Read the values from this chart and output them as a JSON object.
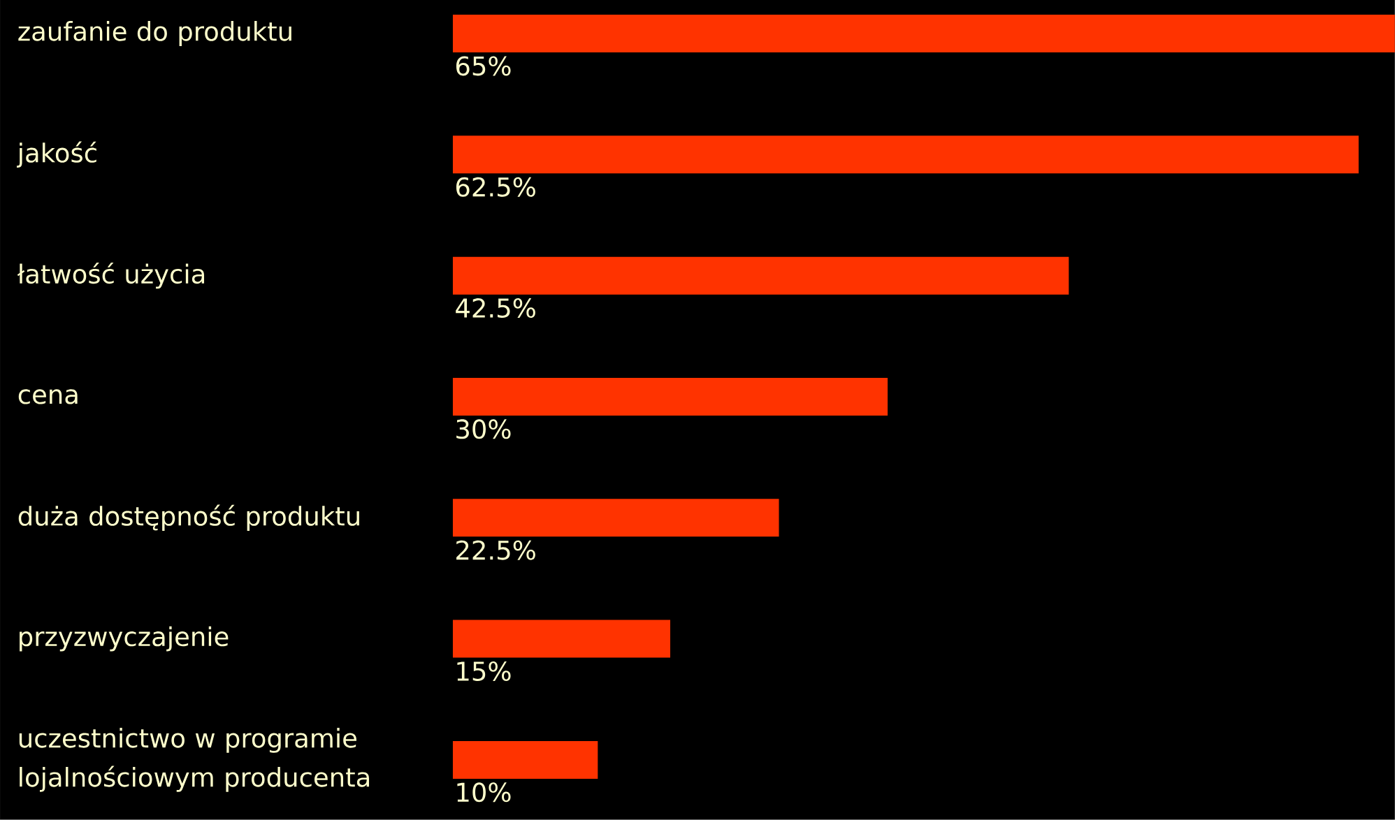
{
  "chart_data": {
    "type": "bar",
    "orientation": "horizontal",
    "categories": [
      "zaufanie do produktu",
      "jakość",
      "łatwość użycia",
      "cena",
      "duża dostępność produktu",
      "przyzwyczajenie",
      "uczestnictwo w programie lojalnościowym producenta"
    ],
    "values": [
      65,
      62.5,
      42.5,
      30,
      22.5,
      15,
      10
    ],
    "value_labels": [
      "65%",
      "62.5%",
      "42.5%",
      "30%",
      "22.5%",
      "15%",
      "10%"
    ],
    "color": "#ff3300",
    "tick_labels": "y"
  }
}
